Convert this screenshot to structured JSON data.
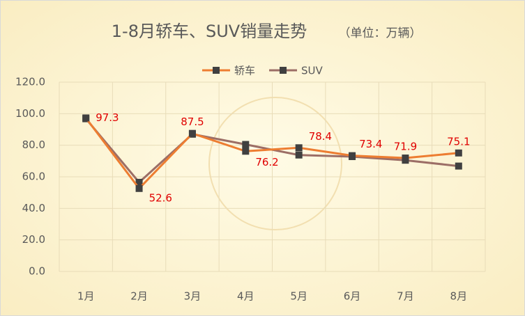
{
  "chart_data": {
    "type": "line",
    "title": "1-8月轿车、SUV销量走势",
    "unit": "（单位：万辆）",
    "categories": [
      "1月",
      "2月",
      "3月",
      "4月",
      "5月",
      "6月",
      "7月",
      "8月"
    ],
    "series": [
      {
        "name": "轿车",
        "color": "#ed7d31",
        "values": [
          97.3,
          52.6,
          87.5,
          76.2,
          78.4,
          73.4,
          71.9,
          75.1
        ]
      },
      {
        "name": "SUV",
        "color": "#9c6e66",
        "values": [
          96.8,
          56.5,
          87.0,
          80.5,
          73.8,
          72.8,
          70.5,
          66.8
        ]
      }
    ],
    "marker_color": "#404040",
    "label_color": "#e00000",
    "ylim": [
      0,
      120
    ],
    "yticks": [
      {
        "value": 0,
        "label": "0.0"
      },
      {
        "value": 20,
        "label": "20.0"
      },
      {
        "value": 40,
        "label": "40.0"
      },
      {
        "value": 60,
        "label": "60.0"
      },
      {
        "value": 80,
        "label": "80.0"
      },
      {
        "value": 100,
        "label": "100.0"
      },
      {
        "value": 120,
        "label": "120.0"
      }
    ],
    "grid": true,
    "legend": "top"
  }
}
